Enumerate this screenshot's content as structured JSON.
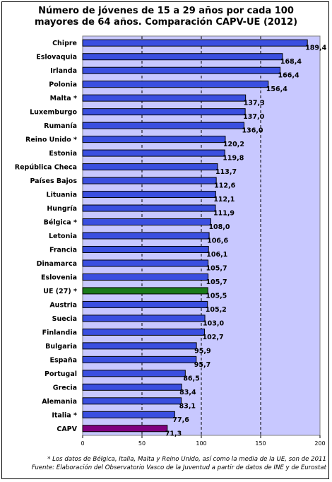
{
  "chart_data": {
    "type": "bar",
    "orientation": "horizontal",
    "title_lines": [
      "Número de jóvenes de 15 a 29 años por cada 100",
      "mayores de 64 años. Comparación CAPV-UE (2012)"
    ],
    "categories": [
      "Chipre",
      "Eslovaquia",
      "Irlanda",
      "Polonia",
      "Malta *",
      "Luxemburgo",
      "Rumanía",
      "Reino Unido *",
      "Estonia",
      "República Checa",
      "Países Bajos",
      "Lituania",
      "Hungría",
      "Bélgica *",
      "Letonia",
      "Francia",
      "Dinamarca",
      "Eslovenia",
      "UE (27) *",
      "Austria",
      "Suecia",
      "Finlandia",
      "Bulgaria",
      "España",
      "Portugal",
      "Grecia",
      "Alemania",
      "Italia *",
      "CAPV"
    ],
    "values": [
      189.4,
      168.4,
      166.4,
      156.4,
      137.3,
      137.0,
      136.0,
      120.2,
      119.8,
      113.7,
      112.6,
      112.1,
      111.9,
      108.0,
      106.6,
      106.1,
      105.7,
      105.7,
      105.5,
      105.2,
      103.0,
      102.7,
      95.9,
      95.7,
      86.5,
      83.4,
      83.1,
      77.6,
      71.3
    ],
    "value_labels": [
      "189,4",
      "168,4",
      "166,4",
      "156,4",
      "137,3",
      "137,0",
      "136,0",
      "120,2",
      "119,8",
      "113,7",
      "112,6",
      "112,1",
      "111,9",
      "108,0",
      "106,6",
      "106,1",
      "105,7",
      "105,7",
      "105,5",
      "105,2",
      "103,0",
      "102,7",
      "95,9",
      "95,7",
      "86,5",
      "83,4",
      "83,1",
      "77,6",
      "71,3"
    ],
    "highlight": {
      "UE (27) *": "#1a7a1a",
      "CAPV": "#800080"
    },
    "bar_color": "#3a4fe0",
    "plot_background": "#c8c8ff",
    "xlim": [
      0,
      200
    ],
    "xticks": [
      0,
      50,
      100,
      150,
      200
    ],
    "gridlines": [
      50,
      100,
      150
    ],
    "grid_style": "dashed",
    "xlabel": "",
    "ylabel": ""
  },
  "footnote": [
    "* Los datos de Bélgica, Italia, Malta y Reino Unido, así como la media de la UE, son de 2011",
    "Fuente: Elaboración del Observatorio Vasco de la Juventud a partir de datos de INE y de Eurostat"
  ]
}
